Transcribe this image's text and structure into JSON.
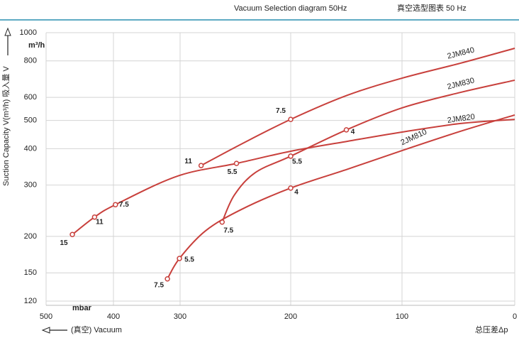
{
  "chart_data": {
    "type": "line",
    "title": "Vacuum Selection diagram 50Hz",
    "subtitle": "真空选型图表 50 Hz",
    "y_label": "Suction Capacity V(m³/h) 吸入量 V",
    "y_unit": "m³/h",
    "x_unit": "mbar",
    "x_label": "(真空) Vacuum",
    "x_label_right": "总压差Δp",
    "log_y": true,
    "grid": true,
    "xlim": [
      500,
      0
    ],
    "ylim": [
      120,
      1000
    ],
    "xticks": [
      500,
      400,
      300,
      200,
      100,
      0
    ],
    "yticks": [
      120,
      150,
      200,
      300,
      400,
      500,
      600,
      800,
      1000
    ],
    "series": [
      {
        "name": "2JM840",
        "color": "#c8403c",
        "x": [
          281,
          245,
          200,
          149,
          100,
          48,
          0
        ],
        "values": [
          350,
          414,
          504,
          610,
          698,
          786,
          884
        ],
        "point_labels": [
          11,
          null,
          7.5,
          null,
          null,
          null,
          null
        ]
      },
      {
        "name": "2JM830",
        "color": "#c8403c",
        "x": [
          262,
          251,
          232,
          200,
          150,
          100,
          48,
          0
        ],
        "values": [
          224,
          277,
          331,
          377,
          464,
          552,
          624,
          687
        ],
        "point_labels": [
          7.5,
          null,
          null,
          5.5,
          4,
          null,
          null,
          null
        ]
      },
      {
        "name": "2JM820",
        "color": "#c8403c",
        "x": [
          461,
          428,
          397,
          304,
          249,
          200,
          149,
          100,
          48,
          0
        ],
        "values": [
          203,
          233,
          257,
          322,
          356,
          392,
          424,
          456,
          488,
          504
        ],
        "point_labels": [
          15,
          11,
          7.5,
          null,
          5.5,
          null,
          null,
          null,
          null,
          null
        ]
      },
      {
        "name": "2JM810",
        "color": "#c8403c",
        "x": [
          319,
          301,
          277,
          245,
          200,
          149,
          100,
          48,
          0
        ],
        "values": [
          143,
          168,
          209,
          247,
          293,
          340,
          394,
          459,
          522
        ],
        "point_labels": [
          7.5,
          5.5,
          null,
          null,
          4,
          null,
          null,
          null,
          null
        ]
      }
    ]
  }
}
